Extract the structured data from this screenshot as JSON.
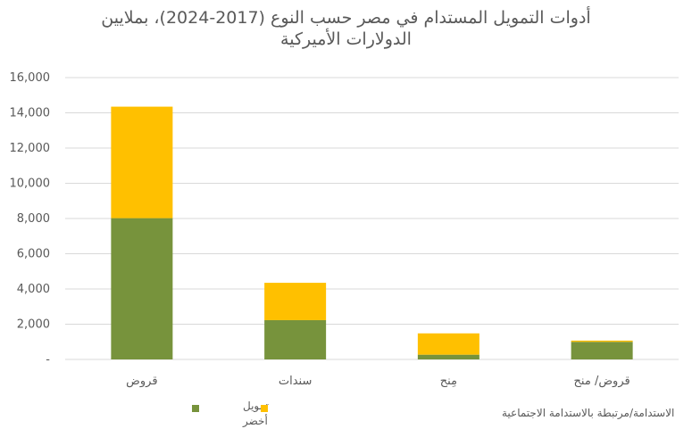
{
  "chart_data": {
    "type": "bar",
    "stacked": true,
    "title_lines": [
      "أدوات التمويل المستدام في مصر حسب النوع (2017-2024)، بملايين",
      "الدولارات الأميركية"
    ],
    "categories": [
      "قروض",
      "سندات",
      "مِنح",
      "قروض/ منح"
    ],
    "series": [
      {
        "name": "تمويل أخضر",
        "legend_lines": [
          "تمويل",
          "أخضر"
        ],
        "color": "#77933C",
        "values": [
          8020,
          2230,
          270,
          1000
        ]
      },
      {
        "name": "الاستدامة/مرتبطة بالاستدامة الاجتماعية",
        "color": "#FFC000",
        "values": [
          6330,
          2120,
          1210,
          70
        ]
      }
    ],
    "ylim": [
      0,
      16000
    ],
    "yticks": [
      "-",
      "2,000",
      "4,000",
      "6,000",
      "8,000",
      "10,000",
      "12,000",
      "14,000",
      "16,000"
    ],
    "grid": true,
    "legend_position": "bottom"
  }
}
